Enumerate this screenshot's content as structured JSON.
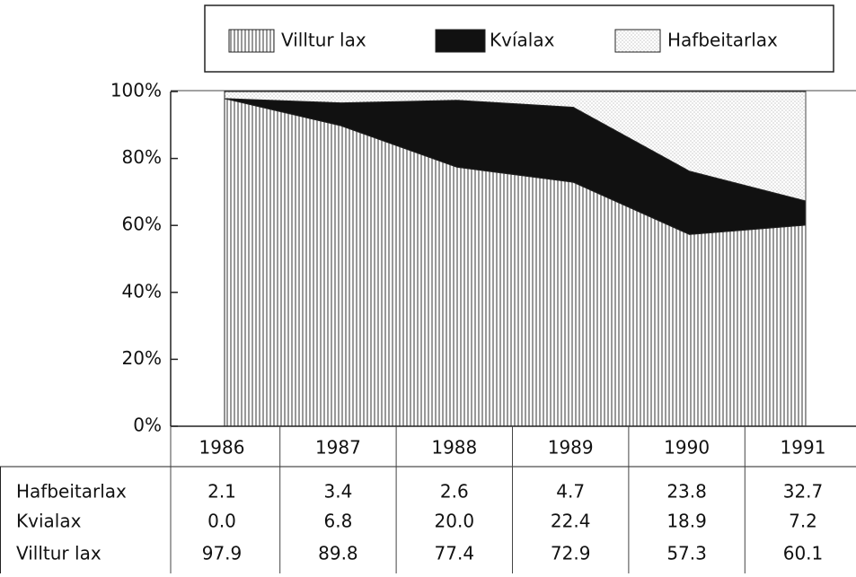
{
  "chart_data": {
    "type": "stacked-area",
    "categories": [
      "1986",
      "1987",
      "1988",
      "1989",
      "1990",
      "1991"
    ],
    "series": [
      {
        "name": "Villtur lax",
        "pattern": "vertical-lines",
        "color": "#555555",
        "values": [
          97.9,
          89.8,
          77.4,
          72.9,
          57.3,
          60.1
        ],
        "value_labels": [
          "97.9",
          "89.8",
          "77.4",
          "72.9",
          "57.3",
          "60.1"
        ]
      },
      {
        "name": "Kvíalax",
        "pattern": "solid",
        "color": "#111111",
        "values": [
          0.0,
          6.8,
          20.0,
          22.4,
          18.9,
          7.2
        ],
        "value_labels": [
          "0.0",
          "6.8",
          "20.0",
          "22.4",
          "18.9",
          "7.2"
        ]
      },
      {
        "name": "Hafbeitarlax",
        "pattern": "dots",
        "color": "#bbbbbb",
        "values": [
          2.1,
          3.4,
          2.6,
          4.7,
          23.8,
          32.7
        ],
        "value_labels": [
          "2.1",
          "3.4",
          "2.6",
          "4.7",
          "23.8",
          "32.7"
        ]
      }
    ],
    "table_labels": [
      "Hafbeitarlax",
      "Kvialax",
      "Villtur lax"
    ],
    "ylim": [
      0,
      100
    ],
    "yticks": [
      {
        "value": 0,
        "label": "0%"
      },
      {
        "value": 20,
        "label": "20%"
      },
      {
        "value": 40,
        "label": "40%"
      },
      {
        "value": 60,
        "label": "60%"
      },
      {
        "value": 80,
        "label": "80%"
      },
      {
        "value": 100,
        "label": "100%"
      }
    ],
    "legend": "top"
  }
}
